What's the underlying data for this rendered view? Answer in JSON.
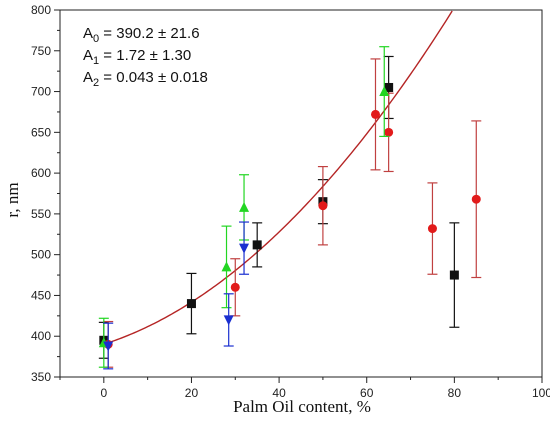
{
  "chart_data": {
    "type": "scatter",
    "xlabel": "Palm Oil content, %",
    "ylabel": "r, nm",
    "xlim": [
      -10,
      100
    ],
    "ylim": [
      350,
      800
    ],
    "xticks": [
      0,
      20,
      40,
      60,
      80,
      100
    ],
    "yticks": [
      350,
      400,
      450,
      500,
      550,
      600,
      650,
      700,
      750,
      800
    ],
    "annotations": [
      {
        "base": "A",
        "sub": "0",
        "rest": " = 390.2 ± 21.6"
      },
      {
        "base": "A",
        "sub": "1",
        "rest": " = 1.72 ± 1.30"
      },
      {
        "base": "A",
        "sub": "2",
        "rest": " = 0.043 ± 0.018"
      }
    ],
    "fit": {
      "type": "quadratic",
      "A0": 390.2,
      "A1": 1.72,
      "A2": 0.043,
      "x_range": [
        0,
        80
      ],
      "color": "#b52525"
    },
    "series": [
      {
        "marker": "square",
        "color": "#111111",
        "err_color": "#111111",
        "points": [
          {
            "x": 0,
            "y": 395,
            "err": 22
          },
          {
            "x": 20,
            "y": 440,
            "err": 37
          },
          {
            "x": 35,
            "y": 512,
            "err": 27
          },
          {
            "x": 50,
            "y": 565,
            "err": 27
          },
          {
            "x": 65,
            "y": 705,
            "err": 38
          },
          {
            "x": 80,
            "y": 475,
            "err": 64
          }
        ]
      },
      {
        "marker": "circle",
        "color": "#e21b1b",
        "err_color": "#c04040",
        "points": [
          {
            "x": 1,
            "y": 390,
            "err": 28
          },
          {
            "x": 30,
            "y": 460,
            "err": 35
          },
          {
            "x": 50,
            "y": 560,
            "err": 48
          },
          {
            "x": 62,
            "y": 672,
            "err": 68
          },
          {
            "x": 65,
            "y": 650,
            "err": 48
          },
          {
            "x": 75,
            "y": 532,
            "err": 56
          },
          {
            "x": 85,
            "y": 568,
            "err": 96
          }
        ]
      },
      {
        "marker": "triangle-up",
        "color": "#22d622",
        "err_color": "#22d622",
        "points": [
          {
            "x": 0,
            "y": 392,
            "err": 30
          },
          {
            "x": 28,
            "y": 485,
            "err": 50
          },
          {
            "x": 32,
            "y": 558,
            "err": 40
          },
          {
            "x": 64,
            "y": 700,
            "err": 55
          }
        ]
      },
      {
        "marker": "triangle-down",
        "color": "#1a2fd0",
        "err_color": "#1a2fd0",
        "points": [
          {
            "x": 1,
            "y": 388,
            "err": 28
          },
          {
            "x": 28.5,
            "y": 420,
            "err": 32
          },
          {
            "x": 32,
            "y": 508,
            "err": 32
          }
        ]
      }
    ]
  }
}
